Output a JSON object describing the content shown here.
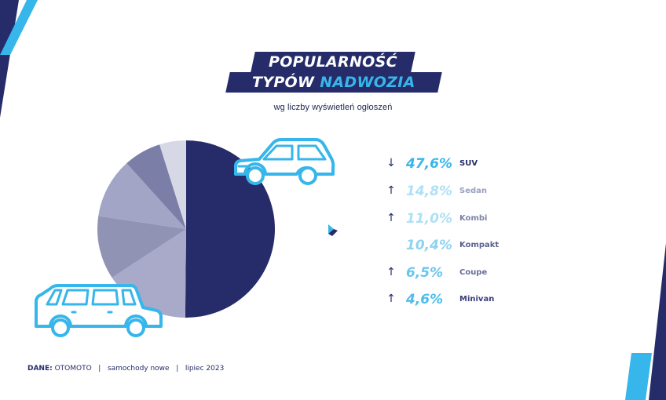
{
  "title": {
    "line1": "POPULARNOŚĆ",
    "line2_plain": "TYPÓW",
    "line2_accent": "NADWOZIA"
  },
  "subtitle": "wg liczby wyświetleń ogłoszeń",
  "colors": {
    "navy": "#252c69",
    "accent": "#36b6ea",
    "slices": [
      "#252c69",
      "#a9aac9",
      "#9193b5",
      "#a3a5c6",
      "#7b7ea6",
      "#d6d8e6"
    ]
  },
  "chart_data": {
    "type": "pie",
    "categories": [
      "SUV",
      "Sedan",
      "Kombi",
      "Kompakt",
      "Coupe",
      "Minivan"
    ],
    "values": [
      47.6,
      14.8,
      11.0,
      10.4,
      6.5,
      4.6
    ],
    "value_labels": [
      "47,6%",
      "14,8%",
      "11,0%",
      "10,4%",
      "6,5%",
      "4,6%"
    ],
    "trend_icons": [
      "arrow-down-icon",
      "arrow-up-icon",
      "arrow-up-icon",
      "",
      "arrow-up-icon",
      "arrow-up-icon"
    ],
    "value_colors": [
      "#36b6ea",
      "#aee0f6",
      "#aee0f6",
      "#8dd3f2",
      "#6ac6ef",
      "#4dbdec"
    ],
    "label_colors": [
      "#252c69",
      "#9aa0c0",
      "#7d82a8",
      "#5c6290",
      "#6b7099",
      "#3a407a"
    ],
    "start_angle_deg": 0,
    "direction": "clockwise"
  },
  "footer": {
    "source_label": "DANE:",
    "source": "OTOMOTO",
    "sep1": "|",
    "segment": "samochody nowe",
    "sep2": "|",
    "date": "lipiec 2023"
  }
}
